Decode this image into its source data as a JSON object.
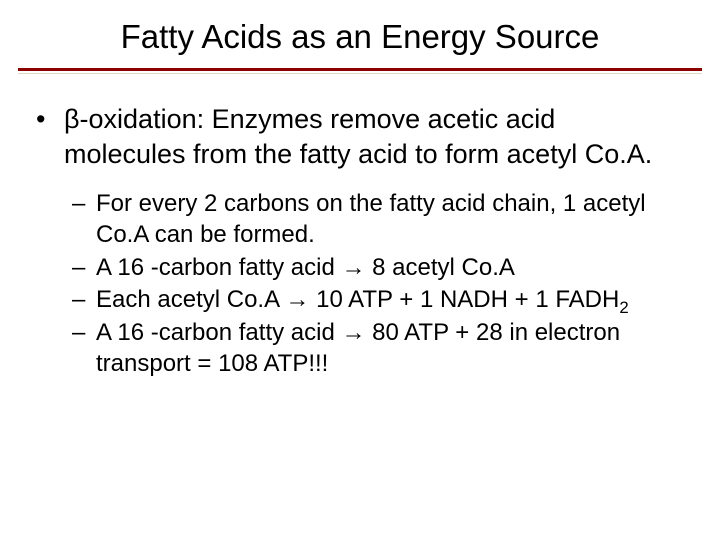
{
  "title": "Fatty Acids as an Energy Source",
  "colors": {
    "divider_primary": "#8b0000",
    "divider_secondary": "#e0d8c0",
    "text": "#000000",
    "background": "#ffffff"
  },
  "typography": {
    "title_fontsize": 33,
    "body_fontsize": 27,
    "sub_fontsize": 24,
    "font_family": "Arial"
  },
  "bullets": {
    "l1_marker": "•",
    "l2_marker": "–",
    "arrow": "→",
    "main": {
      "text": "β-oxidation: Enzymes remove acetic acid molecules from the fatty acid to form acetyl Co.A."
    },
    "subs": [
      {
        "text": "For every 2 carbons on the fatty acid chain, 1 acetyl Co.A can be formed."
      },
      {
        "text": "A 16 -carbon fatty acid → 8 acetyl Co.A"
      },
      {
        "text_html": "Each acetyl Co.A → 10 ATP + 1 NADH + 1 FADH<sub>2</sub>"
      },
      {
        "text": "A 16 -carbon fatty acid → 80 ATP + 28 in electron transport  = 108 ATP!!!"
      }
    ]
  }
}
